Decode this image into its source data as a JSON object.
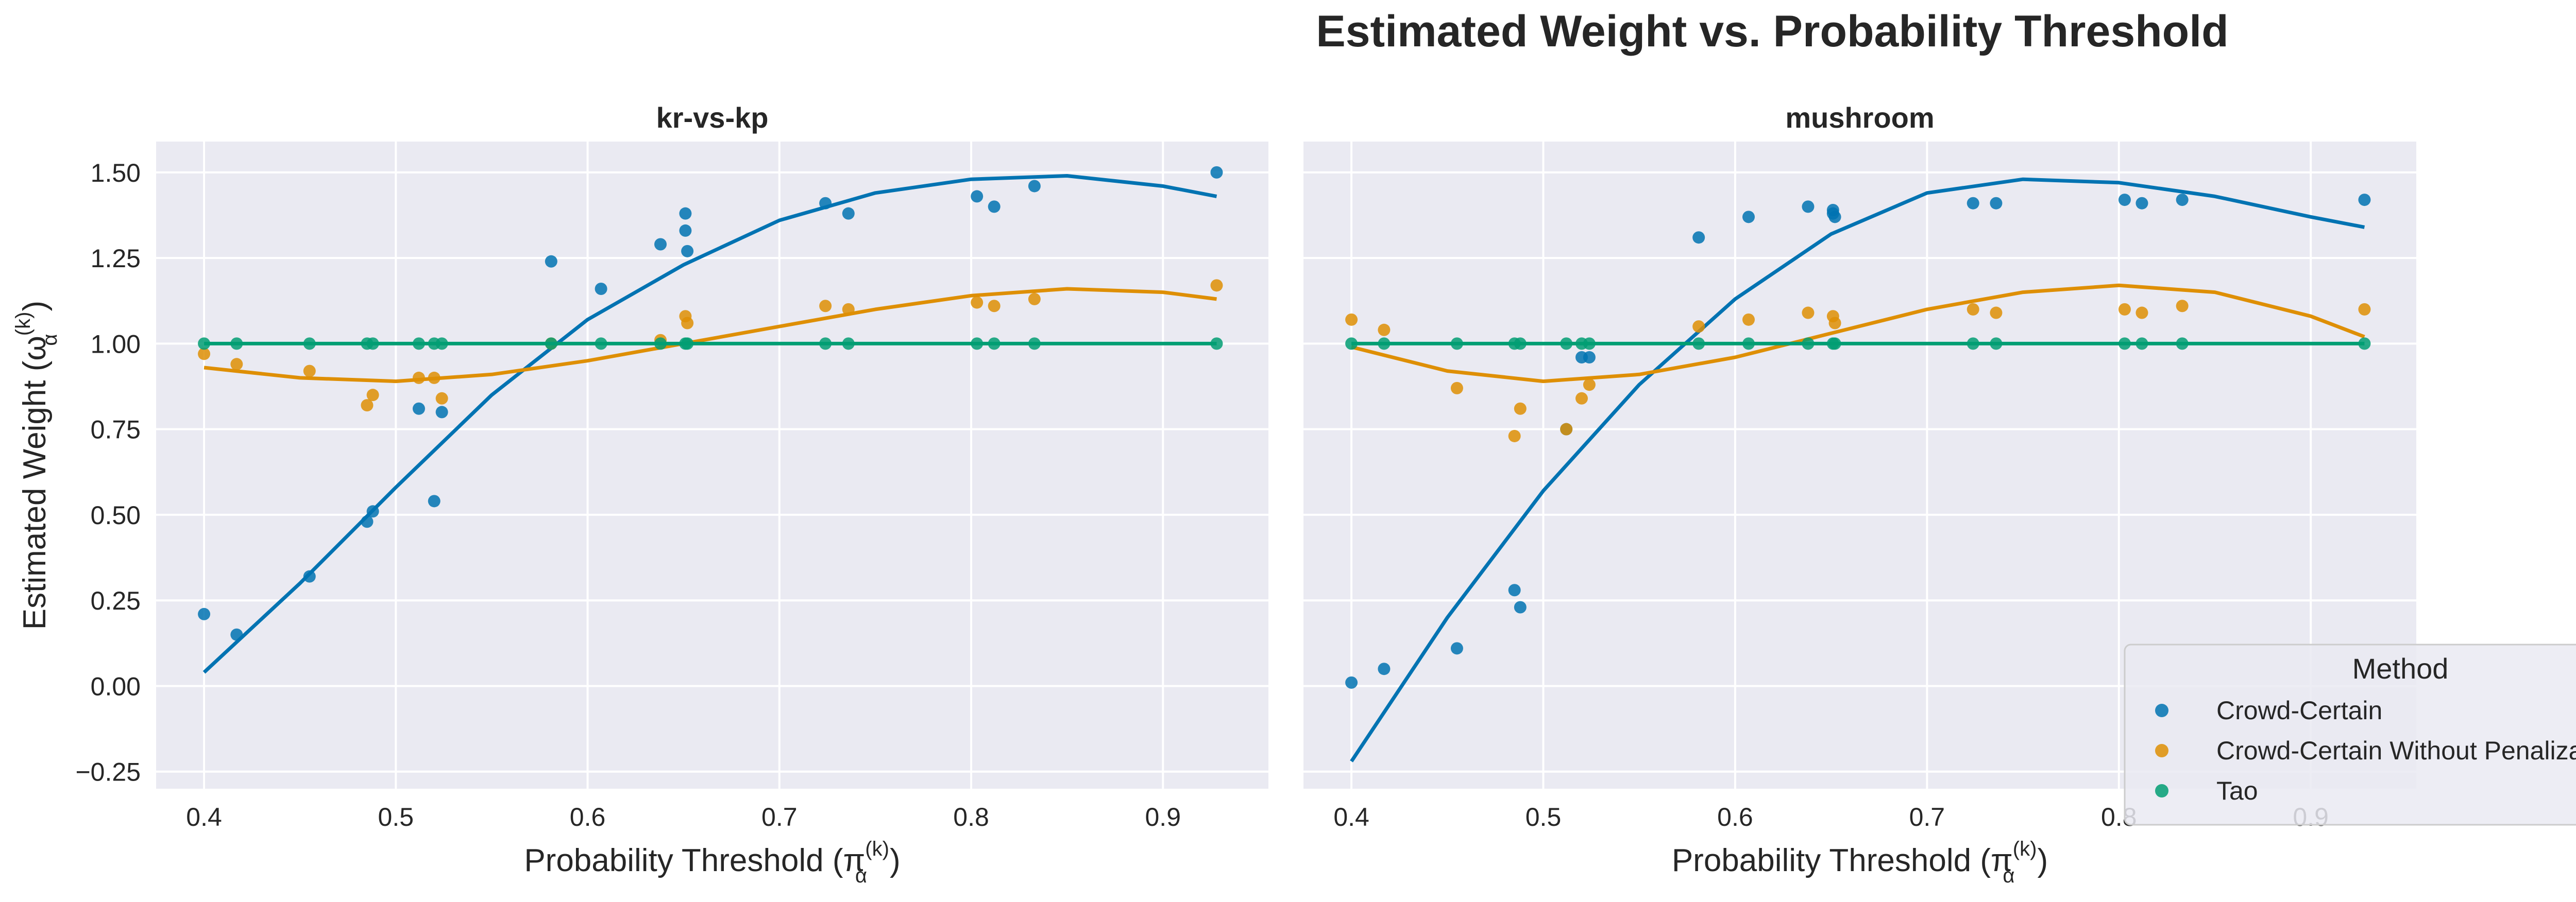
{
  "figure": {
    "title": "Estimated Weight vs. Probability Threshold"
  },
  "legend": {
    "title": "Method",
    "placement": "bottom-right",
    "entries": [
      "Crowd-Certain",
      "Crowd-Certain Without Penalization",
      "Tao"
    ]
  },
  "colors": {
    "Crowd-Certain": "#0173b2",
    "Crowd-Certain Without Penalization": "#de8f05",
    "Tao": "#029e73",
    "panel_background": "#eaeaf2",
    "grid": "#ffffff",
    "text": "#262626"
  },
  "chart_data": [
    {
      "type": "scatter",
      "title": "kr-vs-kp",
      "xlabel": "Probability Threshold (π",
      "xlabel_sup": "(k)",
      "xlabel_sub": "α",
      "xlabel_end": ")",
      "ylabel": "Estimated Weight (ω",
      "ylabel_sup": "(k)",
      "ylabel_sub": "α",
      "ylabel_end": ")",
      "xlim": [
        0.375,
        0.955
      ],
      "ylim": [
        -0.3,
        1.59
      ],
      "xticks": [
        0.4,
        0.5,
        0.6,
        0.7,
        0.8,
        0.9
      ],
      "xtick_labels": [
        "0.4",
        "0.5",
        "0.6",
        "0.7",
        "0.8",
        "0.9"
      ],
      "yticks": [
        -0.25,
        0.0,
        0.25,
        0.5,
        0.75,
        1.0,
        1.25,
        1.5
      ],
      "ytick_labels": [
        "−0.25",
        "0.00",
        "0.25",
        "0.50",
        "0.75",
        "1.00",
        "1.25",
        "1.50"
      ],
      "grid": true,
      "series": [
        {
          "name": "Crowd-Certain",
          "points": [
            [
              0.4,
              0.21
            ],
            [
              0.417,
              0.15
            ],
            [
              0.455,
              0.32
            ],
            [
              0.485,
              0.48
            ],
            [
              0.488,
              0.51
            ],
            [
              0.512,
              0.81
            ],
            [
              0.52,
              0.54
            ],
            [
              0.524,
              0.8
            ],
            [
              0.581,
              1.24
            ],
            [
              0.607,
              1.16
            ],
            [
              0.638,
              1.29
            ],
            [
              0.651,
              1.38
            ],
            [
              0.651,
              1.33
            ],
            [
              0.652,
              1.27
            ],
            [
              0.724,
              1.41
            ],
            [
              0.736,
              1.38
            ],
            [
              0.803,
              1.43
            ],
            [
              0.812,
              1.4
            ],
            [
              0.833,
              1.46
            ],
            [
              0.928,
              1.5
            ]
          ],
          "fit": [
            [
              0.4,
              0.04
            ],
            [
              0.45,
              0.3
            ],
            [
              0.5,
              0.58
            ],
            [
              0.55,
              0.85
            ],
            [
              0.6,
              1.07
            ],
            [
              0.65,
              1.23
            ],
            [
              0.7,
              1.36
            ],
            [
              0.75,
              1.44
            ],
            [
              0.8,
              1.48
            ],
            [
              0.85,
              1.49
            ],
            [
              0.9,
              1.46
            ],
            [
              0.928,
              1.43
            ]
          ]
        },
        {
          "name": "Crowd-Certain Without Penalization",
          "points": [
            [
              0.4,
              0.97
            ],
            [
              0.417,
              0.94
            ],
            [
              0.455,
              0.92
            ],
            [
              0.485,
              0.82
            ],
            [
              0.488,
              0.85
            ],
            [
              0.512,
              0.9
            ],
            [
              0.52,
              0.9
            ],
            [
              0.524,
              0.84
            ],
            [
              0.581,
              1.0
            ],
            [
              0.638,
              1.01
            ],
            [
              0.651,
              1.08
            ],
            [
              0.652,
              1.06
            ],
            [
              0.724,
              1.11
            ],
            [
              0.736,
              1.1
            ],
            [
              0.803,
              1.12
            ],
            [
              0.812,
              1.11
            ],
            [
              0.833,
              1.13
            ],
            [
              0.928,
              1.17
            ]
          ],
          "fit": [
            [
              0.4,
              0.93
            ],
            [
              0.45,
              0.9
            ],
            [
              0.5,
              0.89
            ],
            [
              0.55,
              0.91
            ],
            [
              0.6,
              0.95
            ],
            [
              0.65,
              1.0
            ],
            [
              0.7,
              1.05
            ],
            [
              0.75,
              1.1
            ],
            [
              0.8,
              1.14
            ],
            [
              0.85,
              1.16
            ],
            [
              0.9,
              1.15
            ],
            [
              0.928,
              1.13
            ]
          ]
        },
        {
          "name": "Tao",
          "points": [
            [
              0.4,
              1.0
            ],
            [
              0.417,
              1.0
            ],
            [
              0.455,
              1.0
            ],
            [
              0.485,
              1.0
            ],
            [
              0.488,
              1.0
            ],
            [
              0.512,
              1.0
            ],
            [
              0.52,
              1.0
            ],
            [
              0.524,
              1.0
            ],
            [
              0.581,
              1.0
            ],
            [
              0.607,
              1.0
            ],
            [
              0.638,
              1.0
            ],
            [
              0.651,
              1.0
            ],
            [
              0.652,
              1.0
            ],
            [
              0.724,
              1.0
            ],
            [
              0.736,
              1.0
            ],
            [
              0.803,
              1.0
            ],
            [
              0.812,
              1.0
            ],
            [
              0.833,
              1.0
            ],
            [
              0.928,
              1.0
            ]
          ],
          "fit": [
            [
              0.4,
              1.0
            ],
            [
              0.928,
              1.0
            ]
          ]
        }
      ]
    },
    {
      "type": "scatter",
      "title": "mushroom",
      "xlabel": "Probability Threshold (π",
      "xlabel_sup": "(k)",
      "xlabel_sub": "α",
      "xlabel_end": ")",
      "xlim": [
        0.375,
        0.955
      ],
      "ylim": [
        -0.3,
        1.59
      ],
      "xticks": [
        0.4,
        0.5,
        0.6,
        0.7,
        0.8,
        0.9
      ],
      "xtick_labels": [
        "0.4",
        "0.5",
        "0.6",
        "0.7",
        "0.8",
        "0.9"
      ],
      "yticks": [
        -0.25,
        0.0,
        0.25,
        0.5,
        0.75,
        1.0,
        1.25,
        1.5
      ],
      "grid": true,
      "series": [
        {
          "name": "Crowd-Certain",
          "points": [
            [
              0.4,
              0.01
            ],
            [
              0.417,
              0.05
            ],
            [
              0.455,
              0.11
            ],
            [
              0.485,
              0.28
            ],
            [
              0.488,
              0.23
            ],
            [
              0.512,
              0.75
            ],
            [
              0.52,
              0.96
            ],
            [
              0.524,
              0.96
            ],
            [
              0.581,
              1.31
            ],
            [
              0.607,
              1.37
            ],
            [
              0.638,
              1.4
            ],
            [
              0.651,
              1.39
            ],
            [
              0.651,
              1.38
            ],
            [
              0.652,
              1.37
            ],
            [
              0.724,
              1.41
            ],
            [
              0.736,
              1.41
            ],
            [
              0.803,
              1.42
            ],
            [
              0.812,
              1.41
            ],
            [
              0.833,
              1.42
            ],
            [
              0.928,
              1.42
            ]
          ],
          "fit": [
            [
              0.4,
              -0.22
            ],
            [
              0.45,
              0.2
            ],
            [
              0.5,
              0.57
            ],
            [
              0.55,
              0.88
            ],
            [
              0.6,
              1.13
            ],
            [
              0.65,
              1.32
            ],
            [
              0.7,
              1.44
            ],
            [
              0.75,
              1.48
            ],
            [
              0.8,
              1.47
            ],
            [
              0.85,
              1.43
            ],
            [
              0.9,
              1.37
            ],
            [
              0.928,
              1.34
            ]
          ]
        },
        {
          "name": "Crowd-Certain Without Penalization",
          "points": [
            [
              0.4,
              1.07
            ],
            [
              0.417,
              1.04
            ],
            [
              0.455,
              0.87
            ],
            [
              0.485,
              0.73
            ],
            [
              0.488,
              0.81
            ],
            [
              0.512,
              0.75
            ],
            [
              0.52,
              0.84
            ],
            [
              0.524,
              0.88
            ],
            [
              0.581,
              1.05
            ],
            [
              0.607,
              1.07
            ],
            [
              0.638,
              1.09
            ],
            [
              0.651,
              1.08
            ],
            [
              0.652,
              1.06
            ],
            [
              0.724,
              1.1
            ],
            [
              0.736,
              1.09
            ],
            [
              0.803,
              1.1
            ],
            [
              0.812,
              1.09
            ],
            [
              0.833,
              1.11
            ],
            [
              0.928,
              1.1
            ]
          ],
          "fit": [
            [
              0.4,
              0.99
            ],
            [
              0.45,
              0.92
            ],
            [
              0.5,
              0.89
            ],
            [
              0.55,
              0.91
            ],
            [
              0.6,
              0.96
            ],
            [
              0.65,
              1.03
            ],
            [
              0.7,
              1.1
            ],
            [
              0.75,
              1.15
            ],
            [
              0.8,
              1.17
            ],
            [
              0.85,
              1.15
            ],
            [
              0.9,
              1.08
            ],
            [
              0.928,
              1.02
            ]
          ]
        },
        {
          "name": "Tao",
          "points": [
            [
              0.4,
              1.0
            ],
            [
              0.417,
              1.0
            ],
            [
              0.455,
              1.0
            ],
            [
              0.485,
              1.0
            ],
            [
              0.488,
              1.0
            ],
            [
              0.512,
              1.0
            ],
            [
              0.52,
              1.0
            ],
            [
              0.524,
              1.0
            ],
            [
              0.581,
              1.0
            ],
            [
              0.607,
              1.0
            ],
            [
              0.638,
              1.0
            ],
            [
              0.651,
              1.0
            ],
            [
              0.652,
              1.0
            ],
            [
              0.724,
              1.0
            ],
            [
              0.736,
              1.0
            ],
            [
              0.803,
              1.0
            ],
            [
              0.812,
              1.0
            ],
            [
              0.833,
              1.0
            ],
            [
              0.928,
              1.0
            ]
          ],
          "fit": [
            [
              0.4,
              1.0
            ],
            [
              0.928,
              1.0
            ]
          ]
        }
      ]
    }
  ]
}
